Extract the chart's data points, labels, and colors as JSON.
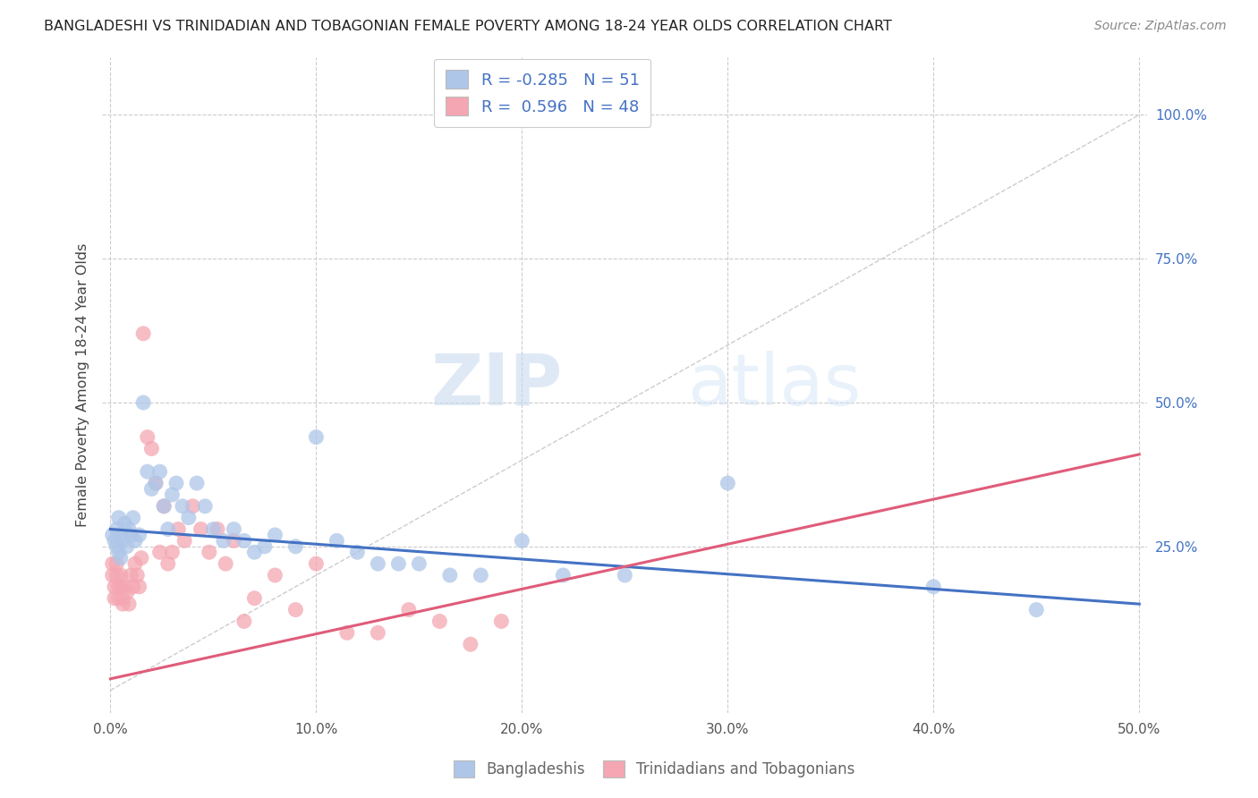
{
  "title": "BANGLADESHI VS TRINIDADIAN AND TOBAGONIAN FEMALE POVERTY AMONG 18-24 YEAR OLDS CORRELATION CHART",
  "source": "Source: ZipAtlas.com",
  "ylabel": "Female Poverty Among 18-24 Year Olds",
  "xlim": [
    -0.004,
    0.504
  ],
  "ylim": [
    -0.04,
    1.1
  ],
  "xticks": [
    0.0,
    0.1,
    0.2,
    0.3,
    0.4,
    0.5
  ],
  "yticks_right": [
    0.25,
    0.5,
    0.75,
    1.0
  ],
  "grid_color": "#cccccc",
  "background_color": "#ffffff",
  "bangladeshi_color": "#aec6e8",
  "trinidadian_color": "#f4a7b2",
  "blue_line_color": "#4472c4",
  "pink_line_color": "#e05c7a",
  "diagonal_color": "#cccccc",
  "watermark_zip": "ZIP",
  "watermark_atlas": "atlas",
  "legend_r_blue": "-0.285",
  "legend_n_blue": "51",
  "legend_r_pink": "0.596",
  "legend_n_pink": "48",
  "blue_intercept": 0.28,
  "blue_slope": -0.26,
  "pink_intercept": 0.02,
  "pink_slope": 0.78,
  "bangladeshi_x": [
    0.001,
    0.002,
    0.003,
    0.003,
    0.004,
    0.004,
    0.005,
    0.005,
    0.006,
    0.007,
    0.008,
    0.009,
    0.01,
    0.011,
    0.012,
    0.014,
    0.016,
    0.018,
    0.02,
    0.022,
    0.024,
    0.026,
    0.028,
    0.03,
    0.032,
    0.035,
    0.038,
    0.042,
    0.046,
    0.05,
    0.055,
    0.06,
    0.065,
    0.07,
    0.075,
    0.08,
    0.09,
    0.1,
    0.11,
    0.12,
    0.13,
    0.14,
    0.15,
    0.165,
    0.18,
    0.2,
    0.22,
    0.25,
    0.3,
    0.4,
    0.45
  ],
  "bangladeshi_y": [
    0.27,
    0.26,
    0.25,
    0.28,
    0.24,
    0.3,
    0.27,
    0.23,
    0.26,
    0.29,
    0.25,
    0.28,
    0.27,
    0.3,
    0.26,
    0.27,
    0.5,
    0.38,
    0.35,
    0.36,
    0.38,
    0.32,
    0.28,
    0.34,
    0.36,
    0.32,
    0.3,
    0.36,
    0.32,
    0.28,
    0.26,
    0.28,
    0.26,
    0.24,
    0.25,
    0.27,
    0.25,
    0.44,
    0.26,
    0.24,
    0.22,
    0.22,
    0.22,
    0.2,
    0.2,
    0.26,
    0.2,
    0.2,
    0.36,
    0.18,
    0.14
  ],
  "trinidadian_x": [
    0.001,
    0.001,
    0.002,
    0.002,
    0.003,
    0.003,
    0.004,
    0.004,
    0.005,
    0.005,
    0.006,
    0.006,
    0.007,
    0.008,
    0.009,
    0.01,
    0.011,
    0.012,
    0.013,
    0.014,
    0.015,
    0.016,
    0.018,
    0.02,
    0.022,
    0.024,
    0.026,
    0.028,
    0.03,
    0.033,
    0.036,
    0.04,
    0.044,
    0.048,
    0.052,
    0.056,
    0.06,
    0.065,
    0.07,
    0.08,
    0.09,
    0.1,
    0.115,
    0.13,
    0.145,
    0.16,
    0.175,
    0.19
  ],
  "trinidadian_y": [
    0.2,
    0.22,
    0.18,
    0.16,
    0.22,
    0.2,
    0.18,
    0.16,
    0.2,
    0.18,
    0.16,
    0.15,
    0.18,
    0.17,
    0.15,
    0.2,
    0.18,
    0.22,
    0.2,
    0.18,
    0.23,
    0.62,
    0.44,
    0.42,
    0.36,
    0.24,
    0.32,
    0.22,
    0.24,
    0.28,
    0.26,
    0.32,
    0.28,
    0.24,
    0.28,
    0.22,
    0.26,
    0.12,
    0.16,
    0.2,
    0.14,
    0.22,
    0.1,
    0.1,
    0.14,
    0.12,
    0.08,
    0.12
  ]
}
